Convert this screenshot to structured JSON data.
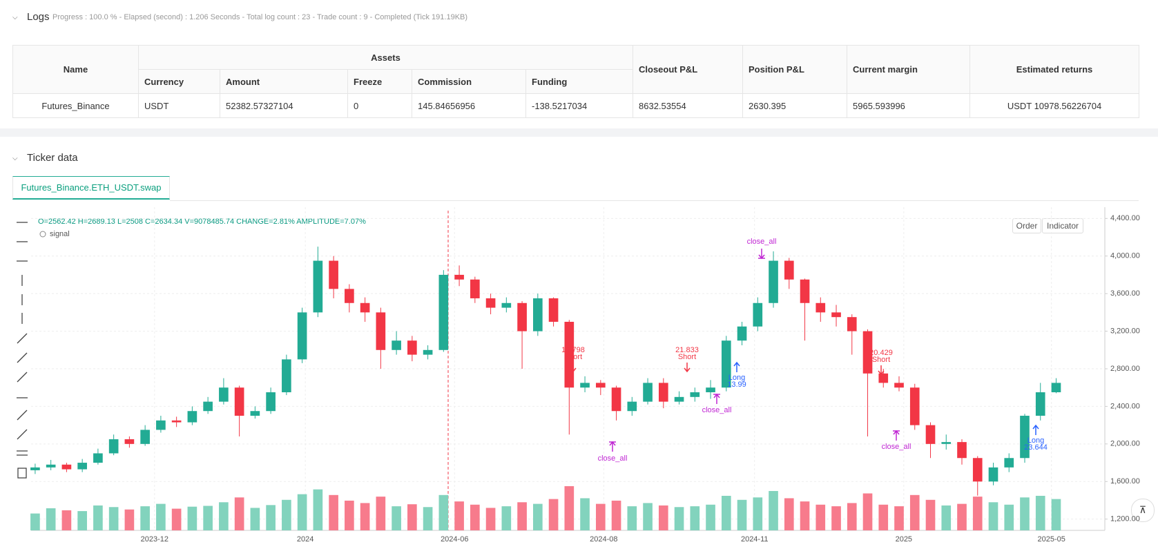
{
  "logs": {
    "title": "Logs",
    "status": "Progress : 100.0 % - Elapsed (second) : 1.206  Seconds - Total log count : 23 - Trade count : 9 - Completed (Tick 191.19KB)",
    "table": {
      "header_top": [
        "Name",
        "Assets",
        "Closeout P&L",
        "Position P&L",
        "Current margin",
        "Estimated returns"
      ],
      "header_sub": [
        "Currency",
        "Amount",
        "Freeze",
        "Commission",
        "Funding"
      ],
      "rows": [
        [
          "Futures_Binance",
          "USDT",
          "52382.57327104",
          "0",
          "145.84656956",
          "-138.5217034",
          "8632.53554",
          "2630.395",
          "5965.593996",
          "USDT 10978.56226704"
        ]
      ]
    }
  },
  "ticker": {
    "title": "Ticker data",
    "tab": "Futures_Binance.ETH_USDT.swap",
    "info": "O=2562.42 H=2689.13 L=2508 C=2634.34 V=9078485.74 CHANGE=2.81% AMPLITUDE=7.07%",
    "legend": "signal",
    "buttons": [
      "Order",
      "Indicator"
    ]
  },
  "chart_data": {
    "type": "candlestick",
    "categories": [
      null,
      null,
      null,
      null,
      null,
      null,
      null,
      null,
      null,
      null,
      null,
      null,
      null,
      null,
      null,
      null,
      null,
      null,
      null,
      null,
      null,
      null,
      null,
      null,
      null,
      null,
      null,
      null,
      null,
      null,
      null,
      null,
      null,
      null,
      null,
      null,
      null,
      null,
      null,
      null,
      null,
      null,
      null,
      null,
      null,
      null,
      null,
      null,
      null,
      null,
      null,
      null,
      null,
      null,
      null,
      null,
      null,
      null,
      null,
      null,
      null,
      null,
      null,
      null,
      null,
      null
    ],
    "open": [
      1720,
      1750,
      1780,
      1730,
      1800,
      1900,
      2050,
      2000,
      2150,
      2250,
      2230,
      2350,
      2450,
      2600,
      2300,
      2350,
      2550,
      2900,
      3400,
      3950,
      3650,
      3500,
      3400,
      3000,
      3100,
      2950,
      3000,
      3800,
      3750,
      3550,
      3450,
      3500,
      3200,
      3550,
      3300,
      2600,
      2650,
      2600,
      2350,
      2450,
      2650,
      2450,
      2500,
      2550,
      2600,
      3100,
      3250,
      3500,
      3950,
      3750,
      3500,
      3400,
      3350,
      3200,
      2750,
      2650,
      2600,
      2200,
      2000,
      2020,
      1850,
      1600,
      1750,
      1850,
      2300,
      2550
    ],
    "high": [
      1790,
      1830,
      1800,
      1840,
      1950,
      2100,
      2080,
      2200,
      2300,
      2290,
      2400,
      2500,
      2700,
      2620,
      2400,
      2600,
      2950,
      3450,
      4100,
      4000,
      3700,
      3560,
      3450,
      3200,
      3150,
      3050,
      3850,
      3900,
      3780,
      3600,
      3560,
      3520,
      3600,
      3560,
      3320,
      2720,
      2680,
      2620,
      2500,
      2700,
      2700,
      2560,
      2600,
      2680,
      3150,
      3300,
      3560,
      4050,
      3980,
      3760,
      3560,
      3480,
      3380,
      3220,
      2800,
      2720,
      2640,
      2230,
      2100,
      2050,
      1870,
      1800,
      1900,
      2320,
      2650,
      2700
    ],
    "low": [
      1680,
      1720,
      1700,
      1700,
      1780,
      1880,
      1960,
      1980,
      2120,
      2180,
      2200,
      2320,
      2420,
      2080,
      2270,
      2320,
      2520,
      2860,
      3350,
      3550,
      3400,
      3300,
      2800,
      2950,
      2880,
      2900,
      2980,
      3680,
      3500,
      3380,
      3400,
      2800,
      3150,
      3250,
      2100,
      2550,
      2520,
      2250,
      2300,
      2420,
      2380,
      2420,
      2450,
      2480,
      2560,
      3050,
      3200,
      3450,
      3650,
      3100,
      3300,
      3250,
      2950,
      2080,
      2600,
      2560,
      2150,
      1850,
      1940,
      1780,
      1450,
      1560,
      1700,
      1800,
      2250,
      2540
    ],
    "close": [
      1750,
      1780,
      1730,
      1800,
      1900,
      2050,
      2000,
      2150,
      2250,
      2230,
      2350,
      2450,
      2600,
      2300,
      2350,
      2550,
      2900,
      3400,
      3950,
      3650,
      3500,
      3400,
      3000,
      3100,
      2950,
      3000,
      3800,
      3750,
      3550,
      3450,
      3500,
      3200,
      3550,
      3300,
      2600,
      2650,
      2600,
      2350,
      2450,
      2650,
      2450,
      2500,
      2550,
      2600,
      3100,
      3250,
      3500,
      3950,
      3750,
      3500,
      3400,
      3350,
      3200,
      2750,
      2650,
      2600,
      2200,
      2000,
      2020,
      1850,
      1600,
      1750,
      1850,
      2300,
      2550,
      2650
    ],
    "volume": [
      4200000,
      5500000,
      5000000,
      4800000,
      6200000,
      5800000,
      5200000,
      6000000,
      6600000,
      5400000,
      5900000,
      6100000,
      7000000,
      8200000,
      5600000,
      6300000,
      7600000,
      9000000,
      10200000,
      8800000,
      7400000,
      6800000,
      8400000,
      6000000,
      6500000,
      5800000,
      8800000,
      7200000,
      6400000,
      5600000,
      6000000,
      7000000,
      6600000,
      7800000,
      11000000,
      8000000,
      6600000,
      7400000,
      6000000,
      6800000,
      6200000,
      5800000,
      6000000,
      6400000,
      8600000,
      7600000,
      8200000,
      9800000,
      8000000,
      7200000,
      6400000,
      6000000,
      6800000,
      9200000,
      6400000,
      6000000,
      8800000,
      7600000,
      6200000,
      6600000,
      8400000,
      7000000,
      6400000,
      8200000,
      8600000,
      7800000
    ],
    "up_color": "#22ab94",
    "down_color": "#f23645",
    "volume_up_color": "#82d3bd",
    "volume_down_color": "#f77b8c",
    "xlim": [
      -0.26,
      68.1
    ],
    "xticks": [
      {
        "value": 7.6,
        "label": "2023-12"
      },
      {
        "value": 17.2,
        "label": "2024"
      },
      {
        "value": 26.7,
        "label": "2024-06"
      },
      {
        "value": 36.2,
        "label": "2024-08"
      },
      {
        "value": 45.8,
        "label": "2024-11"
      },
      {
        "value": 55.3,
        "label": "2025"
      },
      {
        "value": 64.7,
        "label": "2025-05"
      }
    ],
    "ylim": [
      1080,
      4520
    ],
    "yticks": [
      {
        "value": 1200,
        "label": "1,200.00"
      },
      {
        "value": 1600,
        "label": "1,600.00"
      },
      {
        "value": 2000,
        "label": "2,000.00"
      },
      {
        "value": 2400,
        "label": "2,400.00"
      },
      {
        "value": 2800,
        "label": "2,800.00"
      },
      {
        "value": 3200,
        "label": "3,200.00"
      },
      {
        "value": 3600,
        "label": "3,600.00"
      },
      {
        "value": 4000,
        "label": "4,000.00"
      },
      {
        "value": 4400,
        "label": "4,400.00"
      }
    ],
    "grid": true,
    "signals": [
      {
        "side": "Short",
        "qty": 18.798
      },
      {
        "side": "Short",
        "qty": 21.833
      },
      {
        "side": "Long",
        "qty": 13.99
      },
      {
        "side": "Short",
        "qty": 20.429
      },
      {
        "side": "Long",
        "qty": 23.644
      }
    ],
    "close_all": [
      "close_all",
      "close_all",
      "close_all",
      "close_all"
    ]
  }
}
